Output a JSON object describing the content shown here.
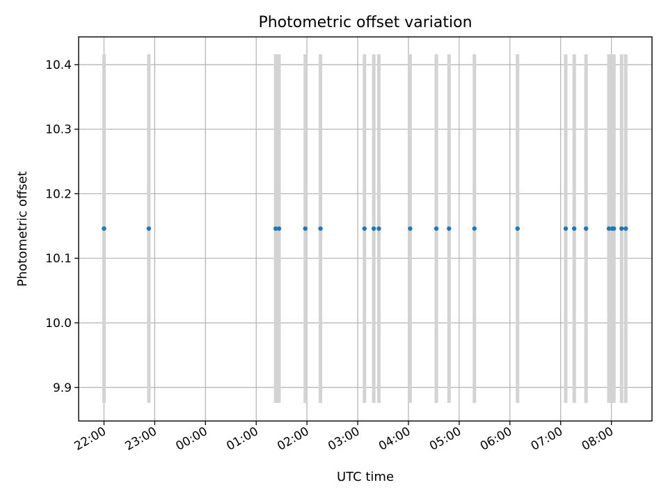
{
  "chart_data": {
    "type": "scatter",
    "title": "Photometric offset variation",
    "xlabel": "UTC time",
    "ylabel": "Photometric offset",
    "x_ticks": [
      "22:00",
      "23:00",
      "00:00",
      "01:00",
      "02:00",
      "03:00",
      "04:00",
      "05:00",
      "06:00",
      "07:00",
      "08:00"
    ],
    "xlim": [
      "21:30",
      "08:48"
    ],
    "y_ticks": [
      9.9,
      10.0,
      10.1,
      10.2,
      10.3,
      10.4
    ],
    "ylim": [
      9.848,
      10.443
    ],
    "grid": true,
    "marker_color": "#1f77b4",
    "errorbar_color": "#d3d3d3",
    "series": [
      {
        "points": [
          {
            "x": "22:00",
            "y": 10.146,
            "err": 0.27
          },
          {
            "x": "22:53",
            "y": 10.146,
            "err": 0.27
          },
          {
            "x": "01:23",
            "y": 10.146,
            "err": 0.27
          },
          {
            "x": "01:27",
            "y": 10.146,
            "err": 0.27
          },
          {
            "x": "01:58",
            "y": 10.146,
            "err": 0.27
          },
          {
            "x": "02:16",
            "y": 10.146,
            "err": 0.27
          },
          {
            "x": "03:08",
            "y": 10.146,
            "err": 0.27
          },
          {
            "x": "03:19",
            "y": 10.146,
            "err": 0.27
          },
          {
            "x": "03:25",
            "y": 10.146,
            "err": 0.27
          },
          {
            "x": "04:02",
            "y": 10.146,
            "err": 0.27
          },
          {
            "x": "04:33",
            "y": 10.146,
            "err": 0.27
          },
          {
            "x": "04:48",
            "y": 10.146,
            "err": 0.27
          },
          {
            "x": "05:18",
            "y": 10.146,
            "err": 0.27
          },
          {
            "x": "06:09",
            "y": 10.146,
            "err": 0.27
          },
          {
            "x": "07:06",
            "y": 10.146,
            "err": 0.27
          },
          {
            "x": "07:16",
            "y": 10.146,
            "err": 0.27
          },
          {
            "x": "07:30",
            "y": 10.146,
            "err": 0.27
          },
          {
            "x": "07:57",
            "y": 10.146,
            "err": 0.27
          },
          {
            "x": "08:01",
            "y": 10.146,
            "err": 0.27
          },
          {
            "x": "08:03",
            "y": 10.146,
            "err": 0.27
          },
          {
            "x": "08:12",
            "y": 10.146,
            "err": 0.27
          },
          {
            "x": "08:17",
            "y": 10.146,
            "err": 0.27
          }
        ]
      }
    ]
  }
}
